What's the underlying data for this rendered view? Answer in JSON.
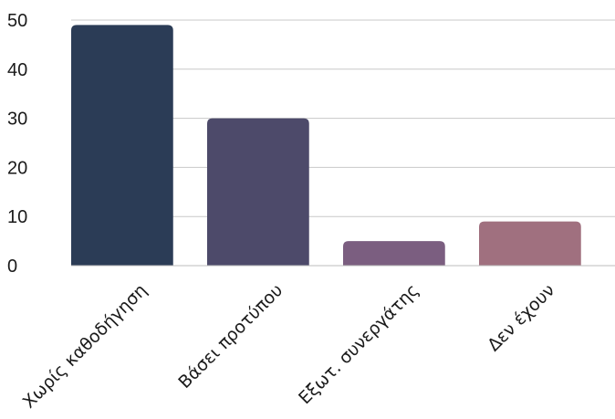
{
  "chart_data": {
    "type": "bar",
    "categories": [
      "Χωρίς καθοδήγηση",
      "Βάσει προτύπου",
      "Εξωτ. συνεργάτης",
      "Δεν έχουν"
    ],
    "values": [
      49,
      30,
      5,
      9
    ],
    "colors": [
      "#2b3c56",
      "#4d4a6a",
      "#7b5e80",
      "#a0707f"
    ],
    "title": "",
    "xlabel": "",
    "ylabel": "",
    "ylim": [
      0,
      50
    ],
    "yticks": [
      0,
      10,
      20,
      30,
      40,
      50
    ],
    "grid": true,
    "legend": "none"
  }
}
